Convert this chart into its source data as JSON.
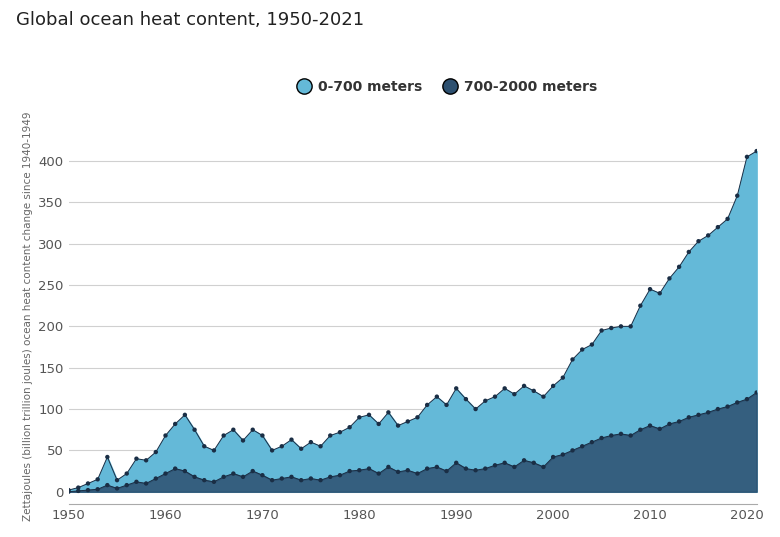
{
  "title": "Global ocean heat content, 1950-2021",
  "ylabel": "Zettajoules (billion trillion joules) ocean heat content change since 1940-1949",
  "legend_labels": [
    "0-700 meters",
    "700-2000 meters"
  ],
  "color_700": "#64b9d8",
  "color_2000": "#2d5070",
  "marker_color": "#1a2e45",
  "bg_color": "#ffffff",
  "grid_color": "#d0d0d0",
  "years": [
    1950,
    1951,
    1952,
    1953,
    1954,
    1955,
    1956,
    1957,
    1958,
    1959,
    1960,
    1961,
    1962,
    1963,
    1964,
    1965,
    1966,
    1967,
    1968,
    1969,
    1970,
    1971,
    1972,
    1973,
    1974,
    1975,
    1976,
    1977,
    1978,
    1979,
    1980,
    1981,
    1982,
    1983,
    1984,
    1985,
    1986,
    1987,
    1988,
    1989,
    1990,
    1991,
    1992,
    1993,
    1994,
    1995,
    1996,
    1997,
    1998,
    1999,
    2000,
    2001,
    2002,
    2003,
    2004,
    2005,
    2006,
    2007,
    2008,
    2009,
    2010,
    2011,
    2012,
    2013,
    2014,
    2015,
    2016,
    2017,
    2018,
    2019,
    2020,
    2021
  ],
  "ohc_700": [
    2,
    5,
    10,
    15,
    42,
    14,
    22,
    40,
    38,
    48,
    68,
    82,
    93,
    75,
    55,
    50,
    68,
    75,
    62,
    75,
    68,
    50,
    55,
    63,
    52,
    60,
    55,
    68,
    72,
    78,
    90,
    93,
    82,
    96,
    80,
    85,
    90,
    105,
    115,
    105,
    125,
    112,
    100,
    110,
    115,
    125,
    118,
    128,
    122,
    115,
    128,
    138,
    160,
    172,
    178,
    195,
    198,
    200,
    200,
    225,
    245,
    240,
    258,
    272,
    290,
    303,
    310,
    320,
    330,
    358,
    405,
    412
  ],
  "ohc_2000": [
    0,
    1,
    2,
    3,
    8,
    4,
    8,
    12,
    10,
    16,
    22,
    28,
    25,
    18,
    14,
    12,
    18,
    22,
    18,
    25,
    20,
    14,
    16,
    18,
    14,
    16,
    14,
    18,
    20,
    25,
    26,
    28,
    22,
    30,
    24,
    26,
    22,
    28,
    30,
    25,
    35,
    28,
    26,
    28,
    32,
    35,
    30,
    38,
    35,
    30,
    42,
    45,
    50,
    55,
    60,
    65,
    68,
    70,
    68,
    75,
    80,
    76,
    82,
    85,
    90,
    93,
    96,
    100,
    103,
    108,
    112,
    120
  ],
  "xlim": [
    1950,
    2021
  ],
  "ylim": [
    -15,
    440
  ],
  "yticks": [
    0,
    50,
    100,
    150,
    200,
    250,
    300,
    350,
    400
  ],
  "xticks": [
    1950,
    1960,
    1970,
    1980,
    1990,
    2000,
    2010,
    2020
  ]
}
